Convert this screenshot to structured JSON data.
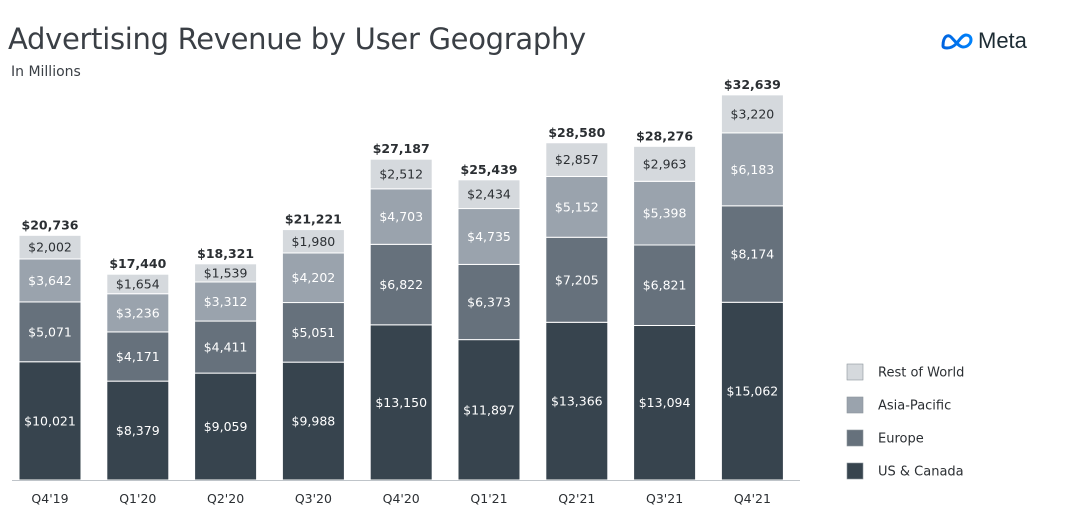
{
  "header": {
    "title": "Advertising Revenue by User Geography",
    "subtitle": "In Millions",
    "logo_text": "Meta"
  },
  "colors": {
    "rest_of_world": "#d5d9dd",
    "asia_pacific": "#9aa3ad",
    "europe": "#66717c",
    "us_canada": "#37444e",
    "axis": "#bfc4c9"
  },
  "chart_data": {
    "type": "bar",
    "stacked": true,
    "categories": [
      "Q4'19",
      "Q1'20",
      "Q2'20",
      "Q3'20",
      "Q4'20",
      "Q1'21",
      "Q2'21",
      "Q3'21",
      "Q4'21"
    ],
    "series": [
      {
        "name": "US & Canada",
        "values": [
          10021,
          8379,
          9059,
          9988,
          13150,
          11897,
          13366,
          13094,
          15062
        ],
        "labels": [
          "$10,021",
          "$8,379",
          "$9,059",
          "$9,988",
          "$13,150",
          "$11,897",
          "$13,366",
          "$13,094",
          "$15,062"
        ]
      },
      {
        "name": "Europe",
        "values": [
          5071,
          4171,
          4411,
          5051,
          6822,
          6373,
          7205,
          6821,
          8174
        ],
        "labels": [
          "$5,071",
          "$4,171",
          "$4,411",
          "$5,051",
          "$6,822",
          "$6,373",
          "$7,205",
          "$6,821",
          "$8,174"
        ]
      },
      {
        "name": "Asia-Pacific",
        "values": [
          3642,
          3236,
          3312,
          4202,
          4703,
          4735,
          5152,
          5398,
          6183
        ],
        "labels": [
          "$3,642",
          "$3,236",
          "$3,312",
          "$4,202",
          "$4,703",
          "$4,735",
          "$5,152",
          "$5,398",
          "$6,183"
        ]
      },
      {
        "name": "Rest of World",
        "values": [
          2002,
          1654,
          1539,
          1980,
          2512,
          2434,
          2857,
          2963,
          3220
        ],
        "labels": [
          "$2,002",
          "$1,654",
          "$1,539",
          "$1,980",
          "$2,512",
          "$2,434",
          "$2,857",
          "$2,963",
          "$3,220"
        ]
      }
    ],
    "totals": [
      "$20,736",
      "$17,440",
      "$18,321",
      "$21,221",
      "$27,187",
      "$25,439",
      "$28,580",
      "$28,276",
      "$32,639"
    ],
    "legend": [
      "Rest of World",
      "Asia-Pacific",
      "Europe",
      "US & Canada"
    ],
    "legend_position": "right",
    "grid": false,
    "ylim": [
      0,
      35000
    ]
  }
}
